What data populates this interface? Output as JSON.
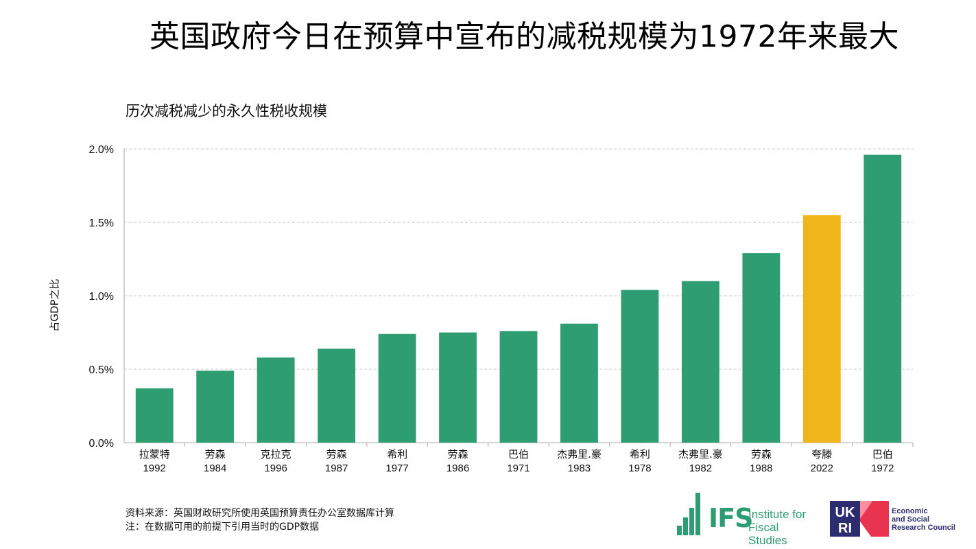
{
  "title": "英国政府今日在预算中宣布的减税规模为1972年来最大",
  "subtitle": "历次减税减少的永久性税收规模",
  "footer": {
    "source": "资料来源：英国财政研究所使用英国预算责任办公室数据库计算",
    "note": "注：在数据可用的前提下引用当时的GDP数据"
  },
  "logos": {
    "ifs_abbr": "IFS",
    "ifs_name_line1": "Institute for",
    "ifs_name_line2": "Fiscal Studies",
    "ukri_mark": "UKRI",
    "ukri_line1": "Economic",
    "ukri_line2": "and Social",
    "ukri_line3": "Research Council",
    "ifs_color": "#2e9c72",
    "ukri_navy": "#2b2d6e",
    "ukri_red": "#e8344e"
  },
  "chart_data": {
    "type": "bar",
    "ylabel": "占GDP之比",
    "xlabel": "",
    "ylim": [
      0,
      2.0
    ],
    "yticks": [
      0,
      0.5,
      1.0,
      1.5,
      2.0
    ],
    "ytick_labels": [
      "0.0%",
      "0.5%",
      "1.0%",
      "1.5%",
      "2.0%"
    ],
    "grid": true,
    "categories": [
      {
        "name": "拉蒙特",
        "year": "1992"
      },
      {
        "name": "劳森",
        "year": "1984"
      },
      {
        "name": "克拉克",
        "year": "1996"
      },
      {
        "name": "劳森",
        "year": "1987"
      },
      {
        "name": "希利",
        "year": "1977"
      },
      {
        "name": "劳森",
        "year": "1986"
      },
      {
        "name": "巴伯",
        "year": "1971"
      },
      {
        "name": "杰弗里.豪",
        "year": "1983"
      },
      {
        "name": "希利",
        "year": "1978"
      },
      {
        "name": "杰弗里.豪",
        "year": "1982"
      },
      {
        "name": "劳森",
        "year": "1988"
      },
      {
        "name": "夸滕",
        "year": "2022"
      },
      {
        "name": "巴伯",
        "year": "1972"
      }
    ],
    "values": [
      0.37,
      0.49,
      0.58,
      0.64,
      0.74,
      0.75,
      0.76,
      0.81,
      1.04,
      1.1,
      1.29,
      1.55,
      1.96
    ],
    "bar_color": "#2e9e72",
    "highlight_color": "#f0b51b",
    "highlight_index": 11,
    "grid_color": "#c8c8c8",
    "axis_color": "#aaaaaa"
  }
}
